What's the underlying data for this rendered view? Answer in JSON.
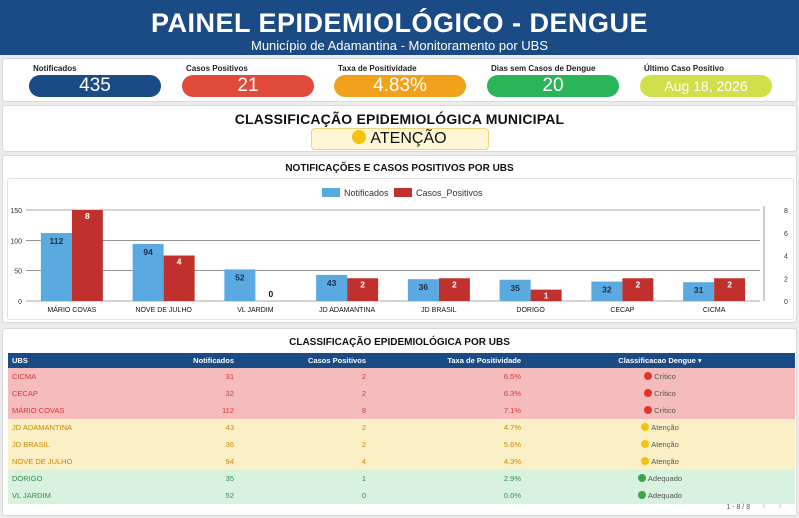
{
  "header": {
    "title": "PAINEL EPIDEMIOLÓGICO - DENGUE",
    "subtitle": "Município de Adamantina - Monitoramento por UBS"
  },
  "kpis": [
    {
      "label": "Notificados",
      "value": "435",
      "color": "#1a4b85"
    },
    {
      "label": "Casos Positivos",
      "value": "21",
      "color": "#e04b3c"
    },
    {
      "label": "Taxa de Positividade",
      "value": "4.83%",
      "color": "#f0a21b"
    },
    {
      "label": "Dias sem Casos de Dengue",
      "value": "20",
      "color": "#2bb45a"
    },
    {
      "label": "Último Caso Positivo",
      "value": "Aug 18, 2026",
      "color": "#cfe04a"
    }
  ],
  "classification": {
    "title": "CLASSIFICAÇÃO EPIDEMIOLÓGICA MUNICIPAL",
    "value": "ATENÇÃO",
    "icon": "yellow-circle-icon"
  },
  "chart": {
    "title": "NOTIFICAÇÕES E CASOS POSITIVOS POR UBS"
  },
  "chart_data": {
    "type": "bar",
    "title": "NOTIFICAÇÕES E CASOS POSITIVOS POR UBS",
    "categories": [
      "MÁRIO COVAS",
      "NOVE DE JULHO",
      "VL JARDIM",
      "JD ADAMANTINA",
      "JD BRASIL",
      "DORIGO",
      "CECAP",
      "CICMA"
    ],
    "series": [
      {
        "name": "Notificados",
        "axis": "left",
        "color": "#5aa9e0",
        "values": [
          112,
          94,
          52,
          43,
          36,
          35,
          32,
          31
        ]
      },
      {
        "name": "Casos_Positivos",
        "axis": "right",
        "color": "#c0312d",
        "values": [
          8,
          4,
          0,
          2,
          2,
          1,
          2,
          2
        ]
      }
    ],
    "y_left": {
      "ticks": [
        "0",
        "50",
        "100",
        "150"
      ],
      "range": [
        0,
        150
      ]
    },
    "y_right": {
      "ticks": [
        "0",
        "2",
        "4",
        "6",
        "8"
      ],
      "range": [
        0,
        8
      ]
    },
    "legend_position": "top-center",
    "grid": true
  },
  "table": {
    "title": "CLASSIFICAÇÃO EPIDEMIOLÓGICA POR UBS",
    "columns": [
      "UBS",
      "Notificados",
      "Casos  Positivos",
      "Taxa de Positividade",
      "Classificacao  Dengue  ▾"
    ],
    "rows": [
      {
        "ubs": "CICMA",
        "notificados": "31",
        "casos": "2",
        "taxa": "6.5%",
        "classe": "Crítico",
        "level": "critico"
      },
      {
        "ubs": "CECAP",
        "notificados": "32",
        "casos": "2",
        "taxa": "6.3%",
        "classe": "Crítico",
        "level": "critico"
      },
      {
        "ubs": "MÁRIO COVAS",
        "notificados": "112",
        "casos": "8",
        "taxa": "7.1%",
        "classe": "Crítico",
        "level": "critico"
      },
      {
        "ubs": "JD ADAMANTINA",
        "notificados": "43",
        "casos": "2",
        "taxa": "4.7%",
        "classe": "Atenção",
        "level": "atencao"
      },
      {
        "ubs": "JD BRASIL",
        "notificados": "36",
        "casos": "2",
        "taxa": "5.6%",
        "classe": "Atenção",
        "level": "atencao"
      },
      {
        "ubs": "NOVE DE JULHO",
        "notificados": "94",
        "casos": "4",
        "taxa": "4.3%",
        "classe": "Atenção",
        "level": "atencao"
      },
      {
        "ubs": "DORIGO",
        "notificados": "35",
        "casos": "1",
        "taxa": "2.9%",
        "classe": "Adequado",
        "level": "adequado"
      },
      {
        "ubs": "VL JARDIM",
        "notificados": "52",
        "casos": "0",
        "taxa": "0.0%",
        "classe": "Adequado",
        "level": "adequado"
      }
    ],
    "level_colors": {
      "critico": "#e0352b",
      "atencao": "#f5c211",
      "adequado": "#3aa648"
    },
    "pagination": "1 - 8 / 8",
    "prev_icon": "chevron-left-icon",
    "next_icon": "chevron-right-icon"
  }
}
